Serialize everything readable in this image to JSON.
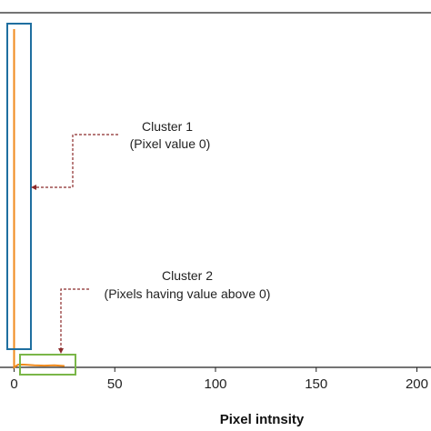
{
  "chart_data": {
    "type": "line",
    "title": "",
    "xlabel": "Pixel intnsity",
    "ylabel": "",
    "xlim": [
      -7,
      207
    ],
    "ylim": [
      0,
      1
    ],
    "x_ticks": [
      0,
      50,
      100,
      150,
      200
    ],
    "x_tick_labels": [
      "0",
      "50",
      "100",
      "150",
      "200"
    ],
    "grid": false,
    "series": [
      {
        "color": "#f08a1c",
        "x": [
          0,
          0,
          2,
          5,
          10,
          15,
          20,
          25
        ],
        "y": [
          1.0,
          0.0,
          0.008,
          0.008,
          0.006,
          0.005,
          0.006,
          0.004
        ]
      }
    ],
    "annotations": [
      {
        "line1": "Cluster 1",
        "line2": "(Pixel value 0)",
        "box_color": "#1f6fa0",
        "arrow_color": "#8b2a2a"
      },
      {
        "line1": "Cluster 2",
        "line2": "(Pixels having value above 0)",
        "box_color": "#7ab648",
        "arrow_color": "#8b2a2a"
      }
    ]
  }
}
